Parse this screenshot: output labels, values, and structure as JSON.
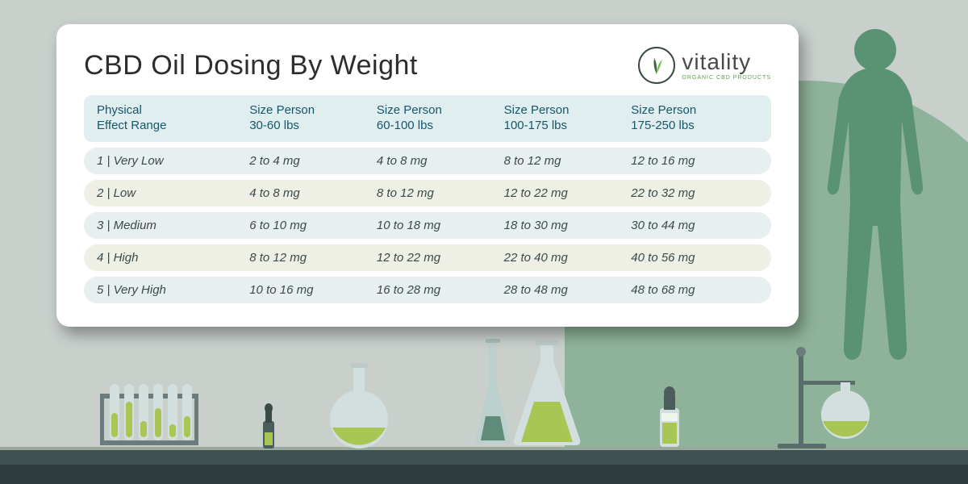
{
  "title": "CBD Oil Dosing By Weight",
  "brand": {
    "name": "vitality",
    "tagline": "ORGANIC CBD PRODUCTS"
  },
  "colors": {
    "page_bg": "#c9d0cc",
    "swoosh": "#8fb39a",
    "card_bg": "#ffffff",
    "header_row_bg": "#e1eef0",
    "header_text": "#16566a",
    "odd_row_bg": "#e7eff0",
    "even_row_bg": "#eff0e5",
    "cell_text": "#3a4a4a",
    "human": "#5a9374",
    "bench_top": "#3d5151",
    "bench_front": "#2d3c3c",
    "liquid": "#a9c654",
    "glass": "#d2dfde",
    "leaf_dark": "#3a6b3f",
    "leaf_light": "#7fbf5a"
  },
  "table": {
    "columns": [
      "Physical\nEffect Range",
      "Size Person\n30-60 lbs",
      "Size Person\n60-100 lbs",
      "Size Person\n100-175 lbs",
      "Size Person\n175-250 lbs"
    ],
    "rows": [
      [
        "1 | Very Low",
        "2 to 4 mg",
        "4 to 8 mg",
        "8 to 12 mg",
        "12 to 16 mg"
      ],
      [
        "2 | Low",
        "4 to 8 mg",
        "8 to 12 mg",
        "12 to 22 mg",
        "22 to 32 mg"
      ],
      [
        "3 | Medium",
        "6 to 10 mg",
        "10 to 18 mg",
        "18 to 30 mg",
        "30 to 44 mg"
      ],
      [
        "4 | High",
        "8 to 12 mg",
        "12 to 22 mg",
        "22 to 40 mg",
        "40 to 56 mg"
      ],
      [
        "5 | Very High",
        "10 to 16 mg",
        "16 to 28 mg",
        "28 to 48 mg",
        "48 to 68 mg"
      ]
    ]
  }
}
